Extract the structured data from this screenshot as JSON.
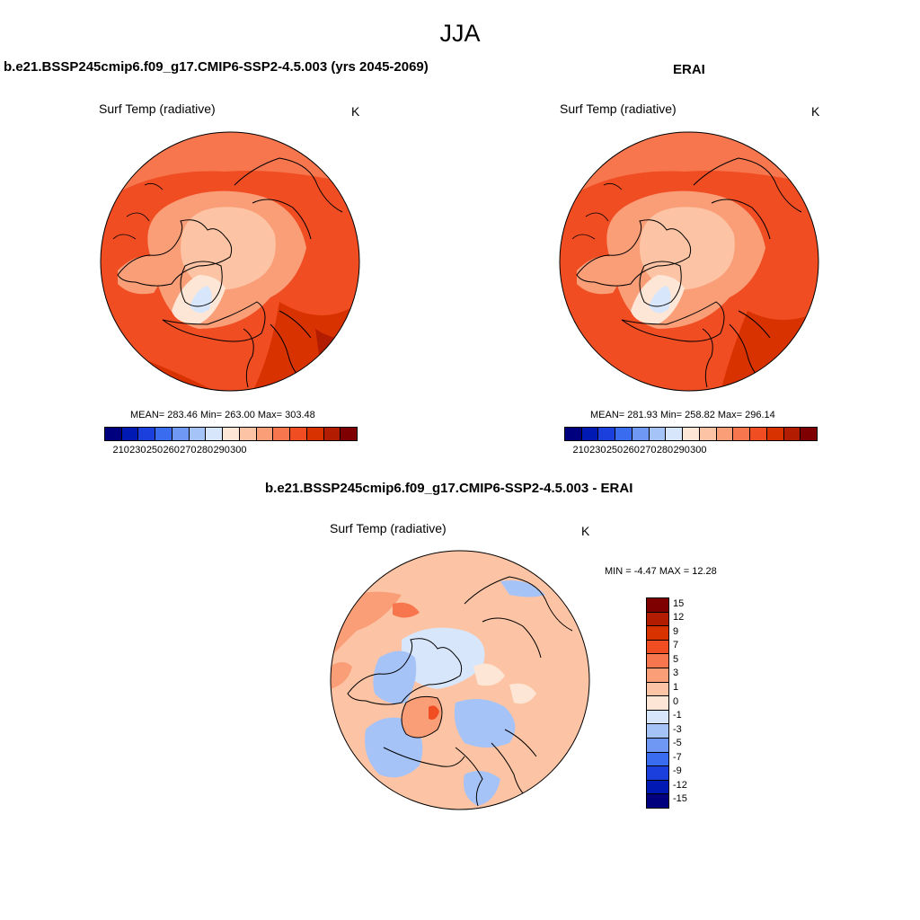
{
  "title": "JJA",
  "panels": {
    "model": {
      "title": "b.e21.BSSP245cmip6.f09_g17.CMIP6-SSP2-4.5.003 (yrs 2045-2069)",
      "subtitle": "Surf Temp (radiative)",
      "units": "K",
      "stats": "MEAN= 283.46  Min= 263.00  Max= 303.48",
      "colorbar_labels": [
        "210",
        "230",
        "250",
        "260",
        "270",
        "280",
        "290",
        "300"
      ]
    },
    "obs": {
      "title": "ERAI",
      "subtitle": "Surf Temp (radiative)",
      "units": "K",
      "stats": "MEAN= 281.93  Min= 258.82  Max= 296.14",
      "colorbar_labels": [
        "210",
        "230",
        "250",
        "260",
        "270",
        "280",
        "290",
        "300"
      ]
    },
    "diff": {
      "title": "b.e21.BSSP245cmip6.f09_g17.CMIP6-SSP2-4.5.003 - ERAI",
      "subtitle": "Surf Temp (radiative)",
      "units": "K",
      "stats": "MIN =  -4.47 MAX =  12.28",
      "colorbar_labels": [
        "15",
        "12",
        "9",
        "7",
        "5",
        "3",
        "1",
        "0",
        "-1",
        "-3",
        "-5",
        "-7",
        "-9",
        "-12",
        "-15"
      ]
    }
  },
  "colors": {
    "abs_scale": [
      "#00007f",
      "#0019b3",
      "#1a3fdc",
      "#3a6cf0",
      "#6f98f5",
      "#a6c3f8",
      "#d8e6fb",
      "#fde6d6",
      "#fcc4a4",
      "#fa9e78",
      "#f7764e",
      "#f04d23",
      "#d83200",
      "#b21c00",
      "#7f0000"
    ],
    "diff_scale": [
      "#7f0000",
      "#b21c00",
      "#d83200",
      "#f04d23",
      "#f7764e",
      "#fa9e78",
      "#fcc4a4",
      "#fde6d6",
      "#d8e6fb",
      "#a6c3f8",
      "#6f98f5",
      "#3a6cf0",
      "#1a3fdc",
      "#0019b3",
      "#00007f"
    ]
  }
}
